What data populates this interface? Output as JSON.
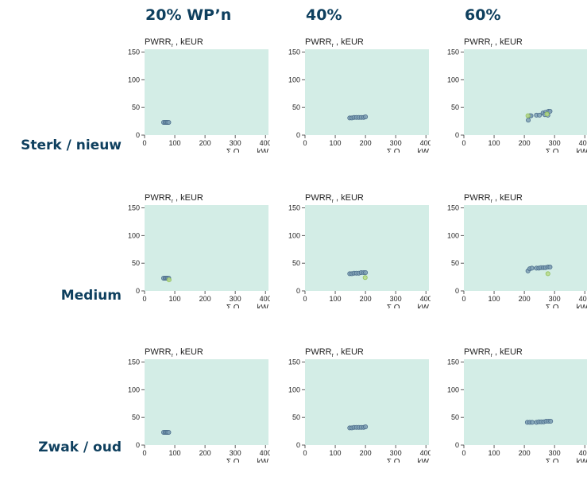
{
  "columns": [
    "20% WP’n",
    "40%",
    "60%"
  ],
  "rows": [
    "Sterk / nieuw",
    "Medium",
    "Zwak / oud"
  ],
  "colors": {
    "background": "#d3ede6",
    "point_fill": "#7fa0b5",
    "point_stroke": "#4a6c8a",
    "alt_point": "#b9d98a",
    "heading": "#0e3f5e"
  },
  "chart_data": [
    {
      "type": "scatter",
      "row": "Sterk / nieuw",
      "column": "20% WP’n",
      "ylabel": "PWRR",
      "ylabel_sub": "r",
      "ylabel_unit": ", kEUR",
      "xlabel": "Σ Q",
      "xlabel_sub": "0,hp",
      "xlabel_unit": " , kW",
      "xlim": [
        0,
        410
      ],
      "ylim": [
        0,
        155
      ],
      "xticks": [
        0,
        100,
        200,
        300,
        400
      ],
      "yticks": [
        0,
        50,
        100,
        150
      ],
      "series": [
        {
          "points": [
            [
              63,
              23
            ],
            [
              68,
              23
            ],
            [
              72,
              23
            ],
            [
              76,
              23
            ],
            [
              80,
              23
            ]
          ]
        }
      ]
    },
    {
      "type": "scatter",
      "row": "Sterk / nieuw",
      "column": "40%",
      "ylabel": "PWRR",
      "ylabel_sub": "r",
      "ylabel_unit": ", kEUR",
      "xlabel": "Σ Q",
      "xlabel_sub": "0,hp",
      "xlabel_unit": " , kW",
      "xlim": [
        0,
        410
      ],
      "ylim": [
        0,
        155
      ],
      "xticks": [
        0,
        100,
        200,
        300,
        400
      ],
      "yticks": [
        0,
        50,
        100,
        150
      ],
      "series": [
        {
          "points": [
            [
              148,
              31
            ],
            [
              155,
              31
            ],
            [
              162,
              32
            ],
            [
              170,
              32
            ],
            [
              178,
              32
            ],
            [
              186,
              32
            ],
            [
              194,
              32
            ],
            [
              200,
              33
            ]
          ]
        }
      ]
    },
    {
      "type": "scatter",
      "row": "Sterk / nieuw",
      "column": "60%",
      "ylabel": "PWRR",
      "ylabel_sub": "r",
      "ylabel_unit": ", kEUR",
      "xlabel": "Σ Q",
      "xlabel_sub": "0,hp",
      "xlabel_unit": " , kW",
      "xlim": [
        0,
        410
      ],
      "ylim": [
        0,
        155
      ],
      "xticks": [
        0,
        100,
        200,
        300,
        400
      ],
      "yticks": [
        0,
        50,
        100,
        150
      ],
      "series": [
        {
          "points": [
            [
              213,
              27
            ],
            [
              218,
              35
            ],
            [
              222,
              35
            ],
            [
              240,
              36
            ],
            [
              250,
              36
            ],
            [
              262,
              40
            ],
            [
              270,
              41
            ],
            [
              280,
              43
            ],
            [
              285,
              43
            ],
            [
              278,
              36
            ],
            [
              268,
              37
            ]
          ]
        },
        {
          "alt": true,
          "points": [
            [
              212,
              35
            ],
            [
              275,
              38
            ]
          ]
        }
      ]
    },
    {
      "type": "scatter",
      "row": "Medium",
      "column": "20% WP’n",
      "ylabel": "PWRR",
      "ylabel_sub": "r",
      "ylabel_unit": ", kEUR",
      "xlabel": "Σ Q",
      "xlabel_sub": "0,hp",
      "xlabel_unit": " , kW",
      "xlim": [
        0,
        410
      ],
      "ylim": [
        0,
        155
      ],
      "xticks": [
        0,
        100,
        200,
        300,
        400
      ],
      "yticks": [
        0,
        50,
        100,
        150
      ],
      "series": [
        {
          "points": [
            [
              63,
              23
            ],
            [
              68,
              23
            ],
            [
              72,
              23
            ],
            [
              76,
              23
            ],
            [
              80,
              23
            ]
          ]
        },
        {
          "alt": true,
          "points": [
            [
              81,
              20
            ]
          ]
        }
      ]
    },
    {
      "type": "scatter",
      "row": "Medium",
      "column": "40%",
      "ylabel": "PWRR",
      "ylabel_sub": "r",
      "ylabel_unit": ", kEUR",
      "xlabel": "Σ Q",
      "xlabel_sub": "0,hp",
      "xlabel_unit": " , kW",
      "xlim": [
        0,
        410
      ],
      "ylim": [
        0,
        155
      ],
      "xticks": [
        0,
        100,
        200,
        300,
        400
      ],
      "yticks": [
        0,
        50,
        100,
        150
      ],
      "series": [
        {
          "points": [
            [
              148,
              31
            ],
            [
              155,
              31
            ],
            [
              162,
              32
            ],
            [
              170,
              32
            ],
            [
              178,
              32
            ],
            [
              186,
              33
            ],
            [
              194,
              33
            ],
            [
              200,
              33
            ]
          ]
        },
        {
          "alt": true,
          "points": [
            [
              199,
              24
            ]
          ]
        }
      ]
    },
    {
      "type": "scatter",
      "row": "Medium",
      "column": "60%",
      "ylabel": "PWRR",
      "ylabel_sub": "r",
      "ylabel_unit": ", kEUR",
      "xlabel": "Σ Q",
      "xlabel_sub": "0,hp",
      "xlabel_unit": " , kW",
      "xlim": [
        0,
        410
      ],
      "ylim": [
        0,
        155
      ],
      "xticks": [
        0,
        100,
        200,
        300,
        400
      ],
      "yticks": [
        0,
        50,
        100,
        150
      ],
      "series": [
        {
          "points": [
            [
              212,
              36
            ],
            [
              218,
              40
            ],
            [
              225,
              41
            ],
            [
              240,
              41
            ],
            [
              248,
              41
            ],
            [
              255,
              42
            ],
            [
              263,
              42
            ],
            [
              270,
              42
            ],
            [
              278,
              43
            ],
            [
              285,
              43
            ]
          ]
        },
        {
          "alt": true,
          "points": [
            [
              278,
              31
            ]
          ]
        }
      ]
    },
    {
      "type": "scatter",
      "row": "Zwak / oud",
      "column": "20% WP’n",
      "ylabel": "PWRR",
      "ylabel_sub": "r",
      "ylabel_unit": ", kEUR",
      "xlabel": "Σ Q",
      "xlabel_sub": "0,hp",
      "xlabel_unit": " , kW",
      "xlim": [
        0,
        410
      ],
      "ylim": [
        0,
        155
      ],
      "xticks": [
        0,
        100,
        200,
        300,
        400
      ],
      "yticks": [
        0,
        50,
        100,
        150
      ],
      "series": [
        {
          "points": [
            [
              63,
              23
            ],
            [
              68,
              23
            ],
            [
              72,
              23
            ],
            [
              76,
              23
            ],
            [
              80,
              23
            ]
          ]
        }
      ]
    },
    {
      "type": "scatter",
      "row": "Zwak / oud",
      "column": "40%",
      "ylabel": "PWRR",
      "ylabel_sub": "r",
      "ylabel_unit": ", kEUR",
      "xlabel": "Σ Q",
      "xlabel_sub": "0,hp",
      "xlabel_unit": " , kW",
      "xlim": [
        0,
        410
      ],
      "ylim": [
        0,
        155
      ],
      "xticks": [
        0,
        100,
        200,
        300,
        400
      ],
      "yticks": [
        0,
        50,
        100,
        150
      ],
      "series": [
        {
          "points": [
            [
              148,
              31
            ],
            [
              155,
              31
            ],
            [
              162,
              32
            ],
            [
              170,
              32
            ],
            [
              178,
              32
            ],
            [
              186,
              32
            ],
            [
              194,
              32
            ],
            [
              200,
              33
            ]
          ]
        }
      ]
    },
    {
      "type": "scatter",
      "row": "Zwak / oud",
      "column": "60%",
      "ylabel": "PWRR",
      "ylabel_sub": "r",
      "ylabel_unit": ", kEUR",
      "xlabel": "Σ Q",
      "xlabel_sub": "0,hp",
      "xlabel_unit": " , kW",
      "xlim": [
        0,
        410
      ],
      "ylim": [
        0,
        155
      ],
      "xticks": [
        0,
        100,
        200,
        300,
        400
      ],
      "yticks": [
        0,
        50,
        100,
        150
      ],
      "series": [
        {
          "points": [
            [
              210,
              41
            ],
            [
              218,
              41
            ],
            [
              226,
              41
            ],
            [
              240,
              41
            ],
            [
              248,
              42
            ],
            [
              256,
              42
            ],
            [
              264,
              42
            ],
            [
              272,
              43
            ],
            [
              280,
              43
            ],
            [
              287,
              43
            ]
          ]
        }
      ]
    }
  ]
}
